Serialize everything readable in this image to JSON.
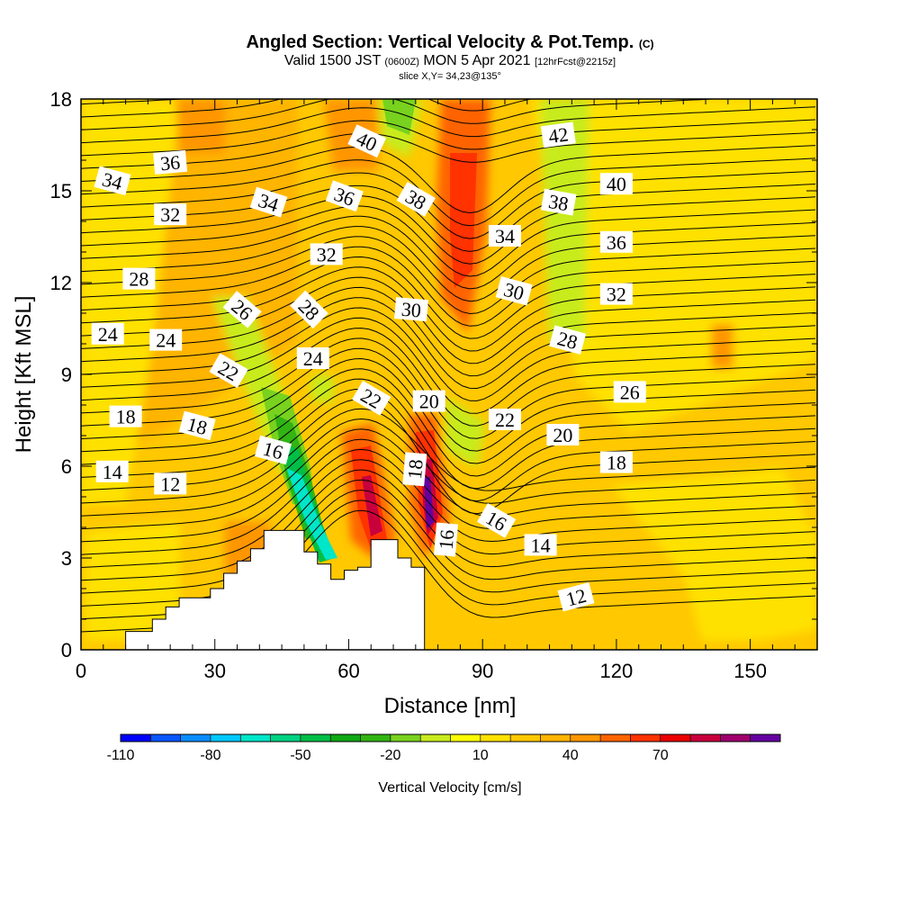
{
  "chart_data": {
    "type": "heatmap",
    "title": "Angled Section: Vertical Velocity & Pot.Temp.",
    "title_mark": "(C)",
    "subtitle_main_a": "Valid 1500 JST",
    "subtitle_small_a": "(0600Z)",
    "subtitle_main_b": "MON 5 Apr 2021",
    "subtitle_small_b": "[12hrFcst@2215z]",
    "slice_label": "slice X,Y= 34,23@135°",
    "xlabel": "Distance [nm]",
    "ylabel": "Height [Kft MSL]",
    "xlim": [
      0,
      165
    ],
    "ylim": [
      0,
      18
    ],
    "x_ticks": [
      "0",
      "30",
      "60",
      "90",
      "120",
      "150"
    ],
    "y_ticks": [
      "0",
      "3",
      "6",
      "9",
      "12",
      "15",
      "18"
    ],
    "colorbar_title": "Vertical Velocity [cm/s]",
    "colorbar_tick_labels": [
      "-110",
      "-80",
      "-50",
      "-20",
      "10",
      "40",
      "70"
    ],
    "colorbar_colors": [
      "#0000ff",
      "#0a55ff",
      "#0a8cff",
      "#00c8ff",
      "#00e6c8",
      "#00d282",
      "#00be46",
      "#10a814",
      "#32b414",
      "#78d21e",
      "#c8eb1e",
      "#ffff00",
      "#ffe100",
      "#ffc800",
      "#ffb400",
      "#ff9600",
      "#ff6400",
      "#ff3200",
      "#eb0000",
      "#c8003c",
      "#a0006e",
      "#6400a0"
    ],
    "terrain_outline": [
      [
        0,
        0
      ],
      [
        10,
        0
      ],
      [
        10,
        0.6
      ],
      [
        16,
        0.6
      ],
      [
        16,
        1.0
      ],
      [
        19,
        1.0
      ],
      [
        19,
        1.4
      ],
      [
        22,
        1.4
      ],
      [
        22,
        1.7
      ],
      [
        29,
        1.7
      ],
      [
        29,
        2.0
      ],
      [
        32,
        2.0
      ],
      [
        32,
        2.5
      ],
      [
        35,
        2.5
      ],
      [
        35,
        2.9
      ],
      [
        38,
        2.9
      ],
      [
        38,
        3.3
      ],
      [
        41,
        3.3
      ],
      [
        41,
        3.9
      ],
      [
        50,
        3.9
      ],
      [
        50,
        3.2
      ],
      [
        53,
        3.2
      ],
      [
        53,
        2.8
      ],
      [
        56,
        2.8
      ],
      [
        56,
        2.3
      ],
      [
        59,
        2.3
      ],
      [
        59,
        2.6
      ],
      [
        62,
        2.6
      ],
      [
        62,
        2.7
      ],
      [
        65,
        2.7
      ],
      [
        65,
        3.6
      ],
      [
        71,
        3.6
      ],
      [
        71,
        3.0
      ],
      [
        74,
        3.0
      ],
      [
        74,
        2.7
      ],
      [
        77,
        2.7
      ],
      [
        77,
        0
      ],
      [
        165,
        0
      ]
    ],
    "theta_labels": [
      {
        "text": "42",
        "x": 107,
        "y": 16.8,
        "angle": -8
      },
      {
        "text": "40",
        "x": 64,
        "y": 16.6,
        "angle": 25
      },
      {
        "text": "40",
        "x": 120,
        "y": 15.2,
        "angle": 0
      },
      {
        "text": "38",
        "x": 75,
        "y": 14.7,
        "angle": 30
      },
      {
        "text": "38",
        "x": 107,
        "y": 14.6,
        "angle": 10
      },
      {
        "text": "36",
        "x": 20,
        "y": 15.9,
        "angle": -5
      },
      {
        "text": "36",
        "x": 59,
        "y": 14.8,
        "angle": 20
      },
      {
        "text": "36",
        "x": 120,
        "y": 13.3,
        "angle": 0
      },
      {
        "text": "34",
        "x": 7,
        "y": 15.3,
        "angle": 15
      },
      {
        "text": "34",
        "x": 42,
        "y": 14.6,
        "angle": 18
      },
      {
        "text": "34",
        "x": 95,
        "y": 13.5,
        "angle": 0
      },
      {
        "text": "32",
        "x": 20,
        "y": 14.2,
        "angle": 0
      },
      {
        "text": "32",
        "x": 55,
        "y": 12.9,
        "angle": 0
      },
      {
        "text": "32",
        "x": 120,
        "y": 11.6,
        "angle": 0
      },
      {
        "text": "30",
        "x": 74,
        "y": 11.1,
        "angle": 5
      },
      {
        "text": "30",
        "x": 97,
        "y": 11.7,
        "angle": 15
      },
      {
        "text": "28",
        "x": 13,
        "y": 12.1,
        "angle": 0
      },
      {
        "text": "28",
        "x": 51,
        "y": 11.1,
        "angle": 45
      },
      {
        "text": "28",
        "x": 109,
        "y": 10.1,
        "angle": 15
      },
      {
        "text": "26",
        "x": 36,
        "y": 11.1,
        "angle": 40
      },
      {
        "text": "26",
        "x": 123,
        "y": 8.4,
        "angle": 0
      },
      {
        "text": "24",
        "x": 6,
        "y": 10.3,
        "angle": 0
      },
      {
        "text": "24",
        "x": 19,
        "y": 10.1,
        "angle": 0
      },
      {
        "text": "24",
        "x": 52,
        "y": 9.5,
        "angle": 0
      },
      {
        "text": "22",
        "x": 33,
        "y": 9.1,
        "angle": 30
      },
      {
        "text": "22",
        "x": 65,
        "y": 8.2,
        "angle": 30
      },
      {
        "text": "22",
        "x": 95,
        "y": 7.5,
        "angle": 0
      },
      {
        "text": "20",
        "x": 78,
        "y": 8.1,
        "angle": 0
      },
      {
        "text": "20",
        "x": 108,
        "y": 7.0,
        "angle": 0
      },
      {
        "text": "18",
        "x": 10,
        "y": 7.6,
        "angle": 0
      },
      {
        "text": "18",
        "x": 26,
        "y": 7.3,
        "angle": 15
      },
      {
        "text": "18",
        "x": 75,
        "y": 5.9,
        "angle": -85
      },
      {
        "text": "18",
        "x": 120,
        "y": 6.1,
        "angle": 0
      },
      {
        "text": "16",
        "x": 43,
        "y": 6.5,
        "angle": 15
      },
      {
        "text": "16",
        "x": 82,
        "y": 3.6,
        "angle": -85
      },
      {
        "text": "16",
        "x": 93,
        "y": 4.2,
        "angle": 30
      },
      {
        "text": "14",
        "x": 7,
        "y": 5.8,
        "angle": 0
      },
      {
        "text": "14",
        "x": 103,
        "y": 3.4,
        "angle": 0
      },
      {
        "text": "12",
        "x": 20,
        "y": 5.4,
        "angle": 0
      },
      {
        "text": "12",
        "x": 111,
        "y": 1.7,
        "angle": -15
      }
    ]
  }
}
